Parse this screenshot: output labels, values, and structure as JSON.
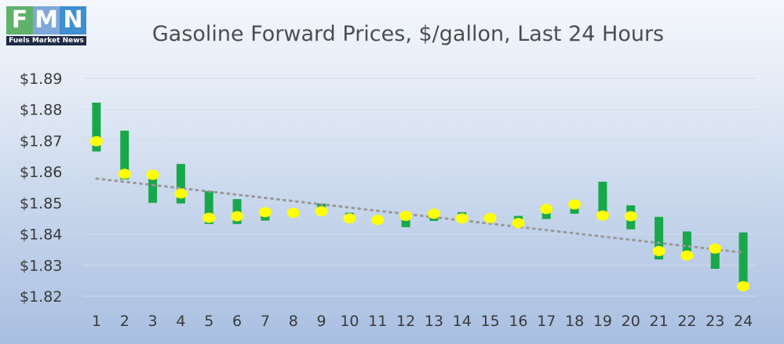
{
  "logo": {
    "letters": [
      "F",
      "M",
      "N"
    ],
    "letter_colors": [
      "#5fb26a",
      "#7fa8d8",
      "#3f8fd1"
    ],
    "subtitle": "Fuels Market News"
  },
  "chart_data": {
    "type": "candlestick",
    "title": "Gasoline Forward Prices, $/gallon, Last 24 Hours",
    "xlabel": "",
    "ylabel": "",
    "ylim": [
      1.82,
      1.89
    ],
    "yticks": [
      1.82,
      1.83,
      1.84,
      1.85,
      1.86,
      1.87,
      1.88,
      1.89
    ],
    "ytick_labels": [
      "$1.82",
      "$1.83",
      "$1.84",
      "$1.85",
      "$1.86",
      "$1.87",
      "$1.88",
      "$1.89"
    ],
    "categories": [
      "1",
      "2",
      "3",
      "4",
      "5",
      "6",
      "7",
      "8",
      "9",
      "10",
      "11",
      "12",
      "13",
      "14",
      "15",
      "16",
      "17",
      "18",
      "19",
      "20",
      "21",
      "22",
      "23",
      "24"
    ],
    "series": [
      {
        "kind": "range-bar",
        "color": "#18a84a",
        "low": [
          1.8665,
          1.8575,
          1.85,
          1.8498,
          1.8432,
          1.8432,
          1.8443,
          1.8465,
          1.8478,
          1.8462,
          1.8445,
          1.8422,
          1.8442,
          1.8452,
          1.8448,
          1.8428,
          1.8448,
          1.8465,
          1.8458,
          1.8415,
          1.8318,
          1.8338,
          1.8288,
          1.8232
        ],
        "high": [
          1.8822,
          1.8732,
          1.86,
          1.8625,
          1.8538,
          1.8512,
          1.848,
          1.848,
          1.8498,
          1.8468,
          1.8455,
          1.8468,
          1.8475,
          1.847,
          1.8458,
          1.8458,
          1.849,
          1.85,
          1.8568,
          1.8492,
          1.8455,
          1.8408,
          1.836,
          1.8405
        ]
      },
      {
        "kind": "marker",
        "color": "#ffff00",
        "values": [
          1.8698,
          1.8593,
          1.859,
          1.853,
          1.8452,
          1.8457,
          1.847,
          1.8468,
          1.8473,
          1.845,
          1.8445,
          1.8458,
          1.8465,
          1.845,
          1.8451,
          1.8435,
          1.848,
          1.8495,
          1.8459,
          1.8457,
          1.8345,
          1.8331,
          1.8353,
          1.8232
        ]
      },
      {
        "kind": "trendline",
        "style": "dotted",
        "color": "#999999",
        "start": 1.8578,
        "end": 1.834
      }
    ],
    "grid": true,
    "legend": "none"
  }
}
